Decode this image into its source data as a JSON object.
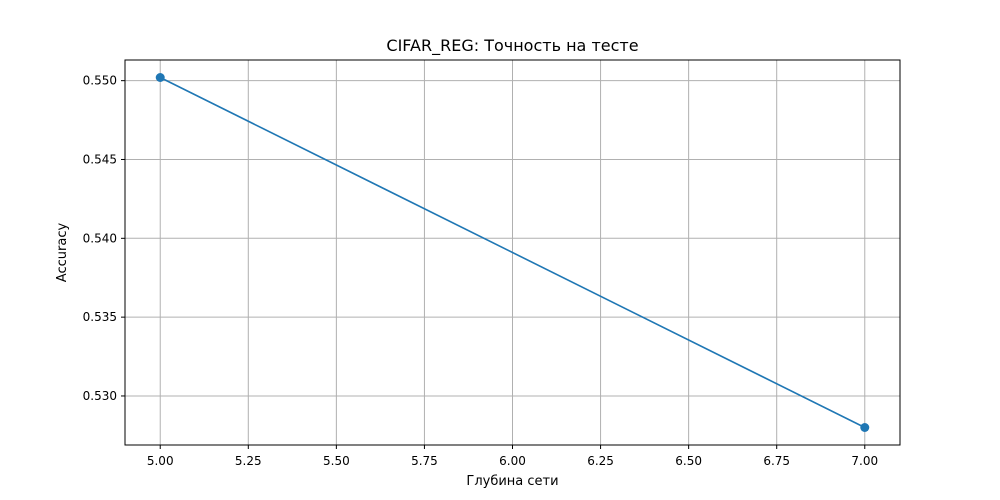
{
  "chart_data": {
    "type": "line",
    "title": "CIFAR_REG: Точность на тесте",
    "xlabel": "Глубина сети",
    "ylabel": "Accuracy",
    "x": [
      5,
      7
    ],
    "series": [
      {
        "values": [
          0.5502,
          0.528
        ],
        "color": "#1f77b4",
        "marker": "circle"
      }
    ],
    "xlim": [
      4.9,
      7.1
    ],
    "ylim": [
      0.52689,
      0.55131
    ],
    "xticks": [
      "5.00",
      "5.25",
      "5.50",
      "5.75",
      "6.00",
      "6.25",
      "6.50",
      "6.75",
      "7.00"
    ],
    "yticks": [
      "0.530",
      "0.535",
      "0.540",
      "0.545",
      "0.550"
    ],
    "grid": true,
    "legend": null
  }
}
